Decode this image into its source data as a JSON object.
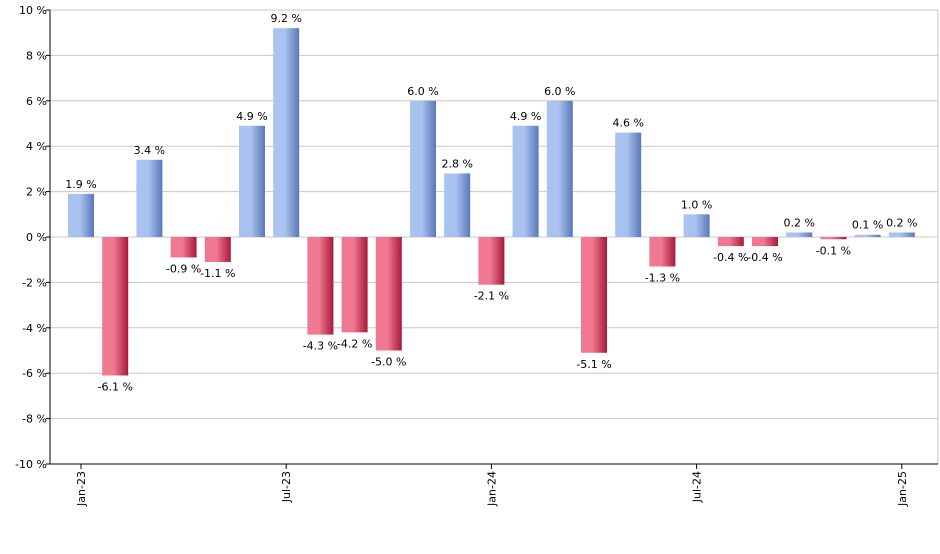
{
  "chart_data": {
    "type": "bar",
    "x": [
      "2023-01",
      "2023-02",
      "2023-03",
      "2023-04",
      "2023-05",
      "2023-06",
      "2023-07",
      "2023-08",
      "2023-09",
      "2023-10",
      "2023-11",
      "2023-12",
      "2024-01",
      "2024-02",
      "2024-03",
      "2024-04",
      "2024-05",
      "2024-06",
      "2024-07",
      "2024-08",
      "2024-09",
      "2024-10",
      "2024-11",
      "2024-12",
      "2025-01"
    ],
    "values": [
      1.9,
      -6.1,
      3.4,
      -0.9,
      -1.1,
      4.9,
      9.2,
      -4.3,
      -4.2,
      -5.0,
      6.0,
      2.8,
      -2.1,
      4.9,
      6.0,
      -5.1,
      4.6,
      -1.3,
      1.0,
      -0.4,
      -0.4,
      0.2,
      -0.1,
      0.1,
      0.2
    ],
    "data_labels": [
      "1.9 %",
      "-6.1 %",
      "3.4 %",
      "-0.9 %",
      "-1.1 %",
      "4.9 %",
      "9.2 %",
      "-4.3 %",
      "-4.2 %",
      "-5.0 %",
      "6.0 %",
      "2.8 %",
      "-2.1 %",
      "4.9 %",
      "6.0 %",
      "-5.1 %",
      "4.6 %",
      "-1.3 %",
      "1.0 %",
      "-0.4 %",
      "-0.4 %",
      "0.2 %",
      "-0.1 %",
      "0.1 %",
      "0.2 %"
    ],
    "title": "",
    "xlabel": "",
    "ylabel": "",
    "ylim": [
      -10,
      10
    ],
    "yticks": [
      10,
      8,
      6,
      4,
      2,
      0,
      -2,
      -4,
      -6,
      -8,
      -10
    ],
    "ytick_labels": [
      "10 %",
      "8 %",
      "6 %",
      "4 %",
      "2 %",
      "0 %",
      "-2 %",
      "-4 %",
      "-6 %",
      "-8 %",
      "-10 %"
    ],
    "xtick_labels": [
      {
        "label": "Jan-23",
        "index": 0
      },
      {
        "label": "Jul-23",
        "index": 6
      },
      {
        "label": "Jan-24",
        "index": 12
      },
      {
        "label": "Jul-24",
        "index": 18
      },
      {
        "label": "Jan-25",
        "index": 24
      }
    ],
    "grid": true,
    "colors": {
      "positive_dark": "#5a78b8",
      "positive_light": "#a9c2f0",
      "negative_dark": "#a8193a",
      "negative_light": "#f07890",
      "grid": "#c8c8c8",
      "axis": "#000000"
    }
  }
}
